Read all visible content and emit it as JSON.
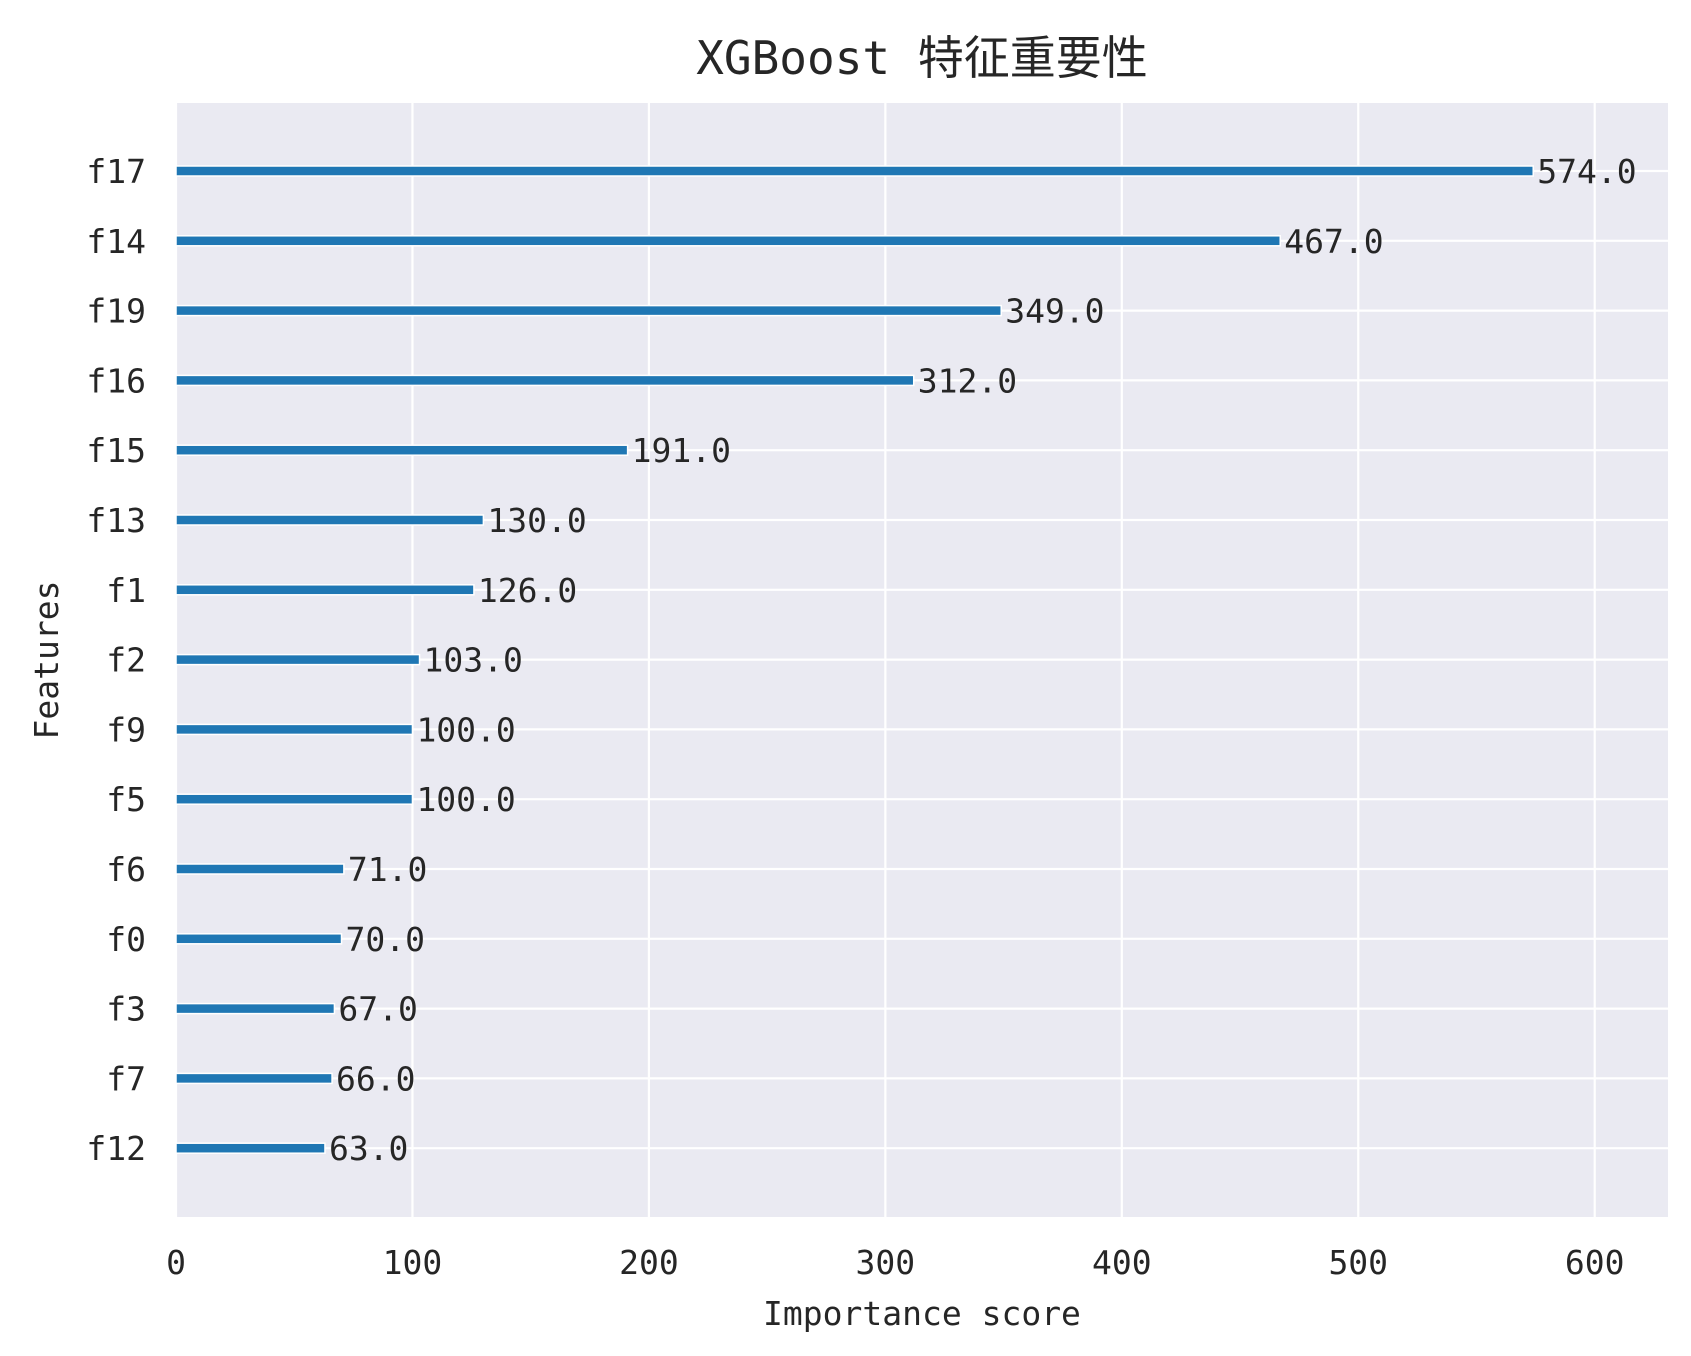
{
  "chart_data": {
    "type": "bar",
    "orientation": "horizontal",
    "title": "XGBoost 特征重要性",
    "xlabel": "Importance score",
    "ylabel": "Features",
    "categories": [
      "f17",
      "f14",
      "f19",
      "f16",
      "f15",
      "f13",
      "f1",
      "f2",
      "f9",
      "f5",
      "f6",
      "f0",
      "f3",
      "f7",
      "f12"
    ],
    "values": [
      574,
      467,
      349,
      312,
      191,
      130,
      126,
      103,
      100,
      100,
      71,
      70,
      67,
      66,
      63
    ],
    "value_labels": [
      "574.0",
      "467.0",
      "349.0",
      "312.0",
      "191.0",
      "130.0",
      "126.0",
      "103.0",
      "100.0",
      "100.0",
      "71.0",
      "70.0",
      "67.0",
      "66.0",
      "63.0"
    ],
    "xticks": [
      0,
      100,
      200,
      300,
      400,
      500,
      600
    ],
    "xtick_labels": [
      "0",
      "100",
      "200",
      "300",
      "400",
      "500",
      "600"
    ],
    "xlim": [
      0,
      631
    ],
    "grid": true,
    "colors": {
      "bar": "#1f77b4",
      "plot_background": "#eaeaf2",
      "grid": "#ffffff",
      "text": "#262626"
    }
  }
}
